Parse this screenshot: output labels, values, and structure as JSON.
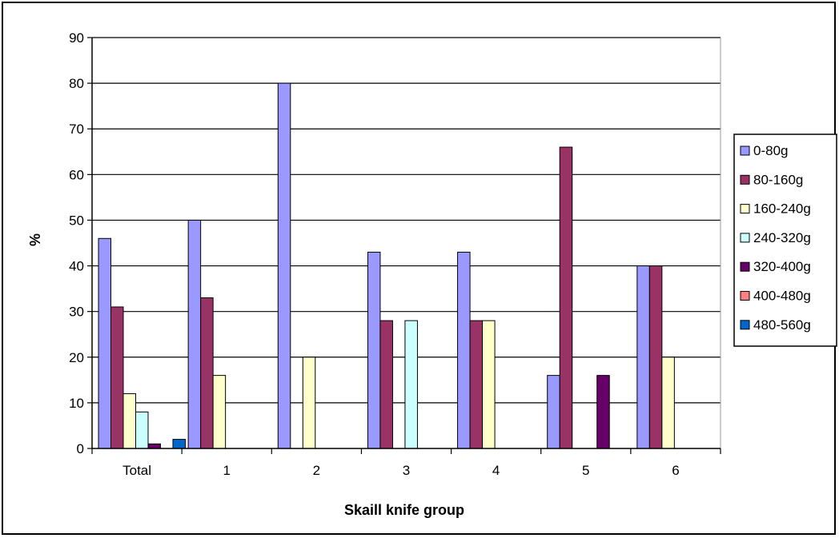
{
  "chart_data": {
    "type": "bar",
    "title": "",
    "xlabel": "Skaill knife group",
    "ylabel": "%",
    "ylim": [
      0,
      90
    ],
    "ytick_step": 10,
    "grid": "horizontal",
    "legend_position": "right",
    "categories": [
      "Total",
      "1",
      "2",
      "3",
      "4",
      "5",
      "6"
    ],
    "series": [
      {
        "name": "0-80g",
        "color": "#9999ff",
        "values": [
          46,
          50,
          80,
          43,
          43,
          16,
          40
        ]
      },
      {
        "name": "80-160g",
        "color": "#993366",
        "values": [
          31,
          33,
          0,
          28,
          28,
          66,
          40
        ]
      },
      {
        "name": "160-240g",
        "color": "#ffffcc",
        "values": [
          12,
          16,
          20,
          0,
          28,
          0,
          20
        ]
      },
      {
        "name": "240-320g",
        "color": "#ccffff",
        "values": [
          8,
          0,
          0,
          28,
          0,
          0,
          0
        ]
      },
      {
        "name": "320-400g",
        "color": "#660066",
        "values": [
          1,
          0,
          0,
          0,
          0,
          16,
          0
        ]
      },
      {
        "name": "400-480g",
        "color": "#ff8080",
        "values": [
          0,
          0,
          0,
          0,
          0,
          0,
          0
        ]
      },
      {
        "name": "480-560g",
        "color": "#0066cc",
        "values": [
          2,
          0,
          0,
          0,
          0,
          0,
          0
        ]
      }
    ]
  }
}
